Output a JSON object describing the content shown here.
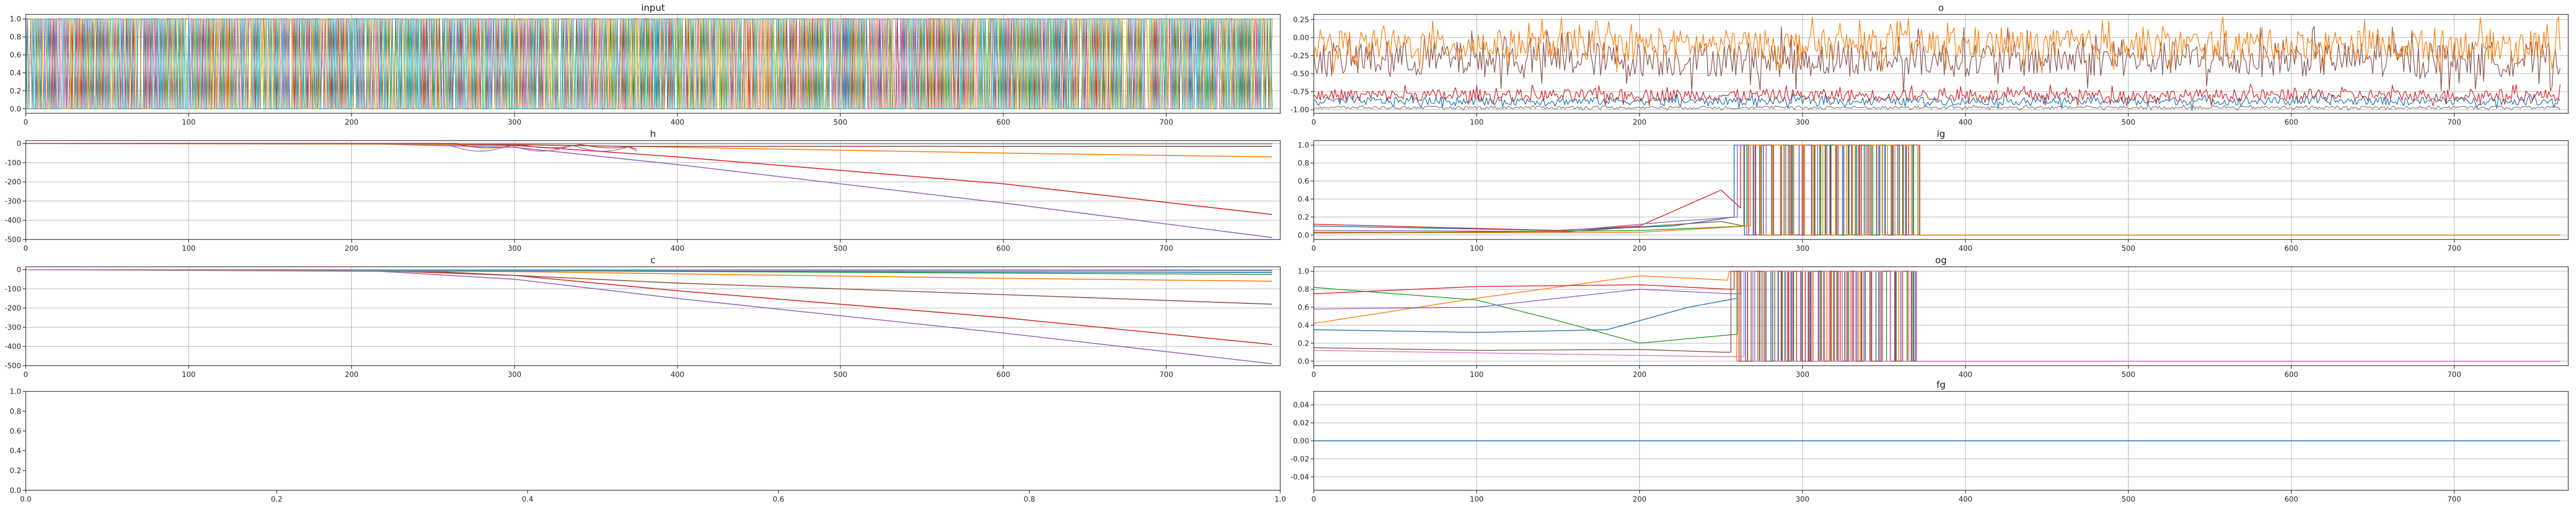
{
  "figure": {
    "background": "#ffffff",
    "grid": true
  },
  "palette": [
    "#1f77b4",
    "#ff7f0e",
    "#2ca02c",
    "#d62728",
    "#9467bd",
    "#8c564b",
    "#e377c2",
    "#7f7f7f",
    "#bcbd22",
    "#17becf"
  ],
  "chart_data": [
    {
      "id": "input",
      "type": "line",
      "title": "input",
      "row": 0,
      "col": 0,
      "xlim": [
        0,
        770
      ],
      "ylim": [
        -0.05,
        1.05
      ],
      "xticks": [
        0,
        100,
        200,
        300,
        400,
        500,
        600,
        700
      ],
      "yticks": [
        0,
        0.2,
        0.4,
        0.6,
        0.8,
        1.0
      ],
      "xtick_labels": [
        "0",
        "100",
        "200",
        "300",
        "400",
        "500",
        "600",
        "700"
      ],
      "ytick_labels": [
        "0.0",
        "0.2",
        "0.4",
        "0.6",
        "0.8",
        "1.0"
      ],
      "pattern": {
        "kind": "binary_switching",
        "n_series": 10,
        "x_end": 765,
        "low": 0,
        "high": 1,
        "flip_prob": 0.35
      }
    },
    {
      "id": "o",
      "type": "line",
      "title": "o",
      "row": 0,
      "col": 1,
      "xlim": [
        0,
        770
      ],
      "ylim": [
        -1.05,
        0.32
      ],
      "xticks": [
        0,
        100,
        200,
        300,
        400,
        500,
        600,
        700
      ],
      "yticks": [
        -1.0,
        -0.75,
        -0.5,
        -0.25,
        0.0,
        0.25
      ],
      "xtick_labels": [
        "0",
        "100",
        "200",
        "300",
        "400",
        "500",
        "600",
        "700"
      ],
      "ytick_labels": [
        "-1.00",
        "-0.75",
        "-0.50",
        "-0.25",
        "0.00",
        "0.25"
      ],
      "series": [
        {
          "color_index": 0,
          "kind": "noise",
          "mean": -0.88,
          "amplitude": 0.08
        },
        {
          "color_index": 3,
          "kind": "noise",
          "mean": -0.8,
          "amplitude": 0.12
        },
        {
          "color_index": 5,
          "kind": "noise",
          "mean": -0.3,
          "amplitude": 0.35
        },
        {
          "color_index": 1,
          "kind": "noise",
          "mean": -0.1,
          "amplitude": 0.3
        },
        {
          "color_index": 7,
          "kind": "noise",
          "mean": -0.97,
          "amplitude": 0.03
        }
      ]
    },
    {
      "id": "h",
      "type": "line",
      "title": "h",
      "row": 1,
      "col": 0,
      "xlim": [
        0,
        770
      ],
      "ylim": [
        -500,
        15
      ],
      "xticks": [
        0,
        100,
        200,
        300,
        400,
        500,
        600,
        700
      ],
      "yticks": [
        -500,
        -400,
        -300,
        -200,
        -100,
        0
      ],
      "xtick_labels": [
        "0",
        "100",
        "200",
        "300",
        "400",
        "500",
        "600",
        "700"
      ],
      "ytick_labels": [
        "-500",
        "-400",
        "-300",
        "-200",
        "-100",
        "0"
      ],
      "series": [
        {
          "color_index": 4,
          "kind": "ramp",
          "points": [
            [
              0,
              0
            ],
            [
              200,
              0
            ],
            [
              300,
              -20
            ],
            [
              400,
              -110
            ],
            [
              600,
              -310
            ],
            [
              765,
              -490
            ]
          ]
        },
        {
          "color_index": 3,
          "kind": "ramp",
          "points": [
            [
              0,
              0
            ],
            [
              200,
              0
            ],
            [
              300,
              -10
            ],
            [
              400,
              -70
            ],
            [
              600,
              -210
            ],
            [
              765,
              -370
            ]
          ]
        },
        {
          "color_index": 1,
          "kind": "ramp",
          "points": [
            [
              0,
              0
            ],
            [
              300,
              -5
            ],
            [
              400,
              -20
            ],
            [
              600,
              -50
            ],
            [
              765,
              -70
            ]
          ]
        },
        {
          "color_index": 5,
          "kind": "ramp",
          "points": [
            [
              0,
              0
            ],
            [
              250,
              0
            ],
            [
              370,
              -15
            ],
            [
              765,
              -15
            ]
          ]
        },
        {
          "color_index": 0,
          "kind": "ramp",
          "points": [
            [
              0,
              0
            ],
            [
              765,
              -2
            ]
          ]
        },
        {
          "color_index": 2,
          "kind": "ramp",
          "points": [
            [
              0,
              0
            ],
            [
              765,
              -1
            ]
          ]
        },
        {
          "color_index": 6,
          "kind": "ramp",
          "points": [
            [
              0,
              0
            ],
            [
              765,
              0
            ]
          ]
        },
        {
          "color_index": 4,
          "kind": "osc",
          "x_start": 260,
          "x_end": 370,
          "base": -10,
          "amplitude": 30,
          "after": -40
        },
        {
          "color_index": 3,
          "kind": "osc",
          "x_start": 265,
          "x_end": 370,
          "base": -5,
          "amplitude": 18,
          "after": -30
        }
      ]
    },
    {
      "id": "ig",
      "type": "line",
      "title": "ig",
      "row": 1,
      "col": 1,
      "xlim": [
        0,
        770
      ],
      "ylim": [
        -0.05,
        1.05
      ],
      "xticks": [
        0,
        100,
        200,
        300,
        400,
        500,
        600,
        700
      ],
      "yticks": [
        0,
        0.2,
        0.4,
        0.6,
        0.8,
        1.0
      ],
      "xtick_labels": [
        "0",
        "100",
        "200",
        "300",
        "400",
        "500",
        "600",
        "700"
      ],
      "ytick_labels": [
        "0.0",
        "0.2",
        "0.4",
        "0.6",
        "0.8",
        "1.0"
      ],
      "series": [
        {
          "color_index": 0,
          "kind": "gate",
          "pre_points": [
            [
              0,
              0.1
            ],
            [
              150,
              0.05
            ],
            [
              220,
              0.1
            ],
            [
              258,
              0.2
            ]
          ],
          "osc_start": 258,
          "osc_end": 372,
          "after": 0
        },
        {
          "color_index": 3,
          "kind": "gate",
          "pre_points": [
            [
              0,
              0.12
            ],
            [
              150,
              0.05
            ],
            [
              200,
              0.1
            ],
            [
              250,
              0.5
            ],
            [
              262,
              0.3
            ]
          ],
          "osc_start": 262,
          "osc_end": 372,
          "after": 0
        },
        {
          "color_index": 4,
          "kind": "gate",
          "pre_points": [
            [
              0,
              0.05
            ],
            [
              150,
              0.04
            ],
            [
              220,
              0.15
            ],
            [
              260,
              0.2
            ]
          ],
          "osc_start": 260,
          "osc_end": 372,
          "after": 0
        },
        {
          "color_index": 5,
          "kind": "gate",
          "pre_points": [
            [
              0,
              0.03
            ],
            [
              150,
              0.03
            ],
            [
              250,
              0.15
            ],
            [
              264,
              0.1
            ]
          ],
          "osc_start": 264,
          "osc_end": 372,
          "after": 0
        },
        {
          "color_index": 2,
          "kind": "gate",
          "pre_points": [
            [
              0,
              0.02
            ],
            [
              200,
              0.05
            ],
            [
              266,
              0.1
            ]
          ],
          "osc_start": 266,
          "osc_end": 372,
          "after": 0
        },
        {
          "color_index": 1,
          "kind": "gate",
          "pre_points": [
            [
              0,
              0.02
            ],
            [
              200,
              0.03
            ],
            [
              268,
              0.1
            ]
          ],
          "osc_start": 268,
          "osc_end": 372,
          "after": 0
        }
      ]
    },
    {
      "id": "c",
      "type": "line",
      "title": "c",
      "row": 2,
      "col": 0,
      "xlim": [
        0,
        770
      ],
      "ylim": [
        -500,
        15
      ],
      "xticks": [
        0,
        100,
        200,
        300,
        400,
        500,
        600,
        700
      ],
      "yticks": [
        -500,
        -400,
        -300,
        -200,
        -100,
        0
      ],
      "xtick_labels": [
        "0",
        "100",
        "200",
        "300",
        "400",
        "500",
        "600",
        "700"
      ],
      "ytick_labels": [
        "-500",
        "-400",
        "-300",
        "-200",
        "-100",
        "0"
      ],
      "series": [
        {
          "color_index": 4,
          "kind": "ramp",
          "points": [
            [
              0,
              0
            ],
            [
              200,
              0
            ],
            [
              300,
              -50
            ],
            [
              400,
              -150
            ],
            [
              600,
              -330
            ],
            [
              765,
              -490
            ]
          ]
        },
        {
          "color_index": 3,
          "kind": "ramp",
          "points": [
            [
              0,
              0
            ],
            [
              200,
              0
            ],
            [
              300,
              -30
            ],
            [
              400,
              -110
            ],
            [
              600,
              -250
            ],
            [
              765,
              -390
            ]
          ]
        },
        {
          "color_index": 5,
          "kind": "ramp",
          "points": [
            [
              0,
              0
            ],
            [
              250,
              -10
            ],
            [
              400,
              -70
            ],
            [
              600,
              -130
            ],
            [
              765,
              -180
            ]
          ]
        },
        {
          "color_index": 1,
          "kind": "ramp",
          "points": [
            [
              0,
              0
            ],
            [
              300,
              -10
            ],
            [
              600,
              -45
            ],
            [
              765,
              -60
            ]
          ]
        },
        {
          "color_index": 2,
          "kind": "ramp",
          "points": [
            [
              0,
              0
            ],
            [
              300,
              -5
            ],
            [
              765,
              -25
            ]
          ]
        },
        {
          "color_index": 0,
          "kind": "ramp",
          "points": [
            [
              0,
              0
            ],
            [
              765,
              -15
            ]
          ]
        },
        {
          "color_index": 9,
          "kind": "ramp",
          "points": [
            [
              0,
              0
            ],
            [
              765,
              -6
            ]
          ]
        },
        {
          "color_index": 7,
          "kind": "ramp",
          "points": [
            [
              0,
              0
            ],
            [
              765,
              -3
            ]
          ]
        },
        {
          "color_index": 6,
          "kind": "ramp",
          "points": [
            [
              0,
              0
            ],
            [
              765,
              -1
            ]
          ]
        }
      ]
    },
    {
      "id": "og",
      "type": "line",
      "title": "og",
      "row": 2,
      "col": 1,
      "xlim": [
        0,
        770
      ],
      "ylim": [
        -0.05,
        1.05
      ],
      "xticks": [
        0,
        100,
        200,
        300,
        400,
        500,
        600,
        700
      ],
      "yticks": [
        0,
        0.2,
        0.4,
        0.6,
        0.8,
        1.0
      ],
      "xtick_labels": [
        "0",
        "100",
        "200",
        "300",
        "400",
        "500",
        "600",
        "700"
      ],
      "ytick_labels": [
        "0.0",
        "0.2",
        "0.4",
        "0.6",
        "0.8",
        "1.0"
      ],
      "series": [
        {
          "color_index": 0,
          "kind": "gate",
          "pre_points": [
            [
              0,
              0.35
            ],
            [
              100,
              0.32
            ],
            [
              180,
              0.35
            ],
            [
              230,
              0.6
            ],
            [
              260,
              0.7
            ]
          ],
          "osc_start": 260,
          "osc_end": 370,
          "after": 0
        },
        {
          "color_index": 1,
          "kind": "gate",
          "pre_points": [
            [
              0,
              0.42
            ],
            [
              100,
              0.7
            ],
            [
              200,
              0.95
            ],
            [
              255,
              0.9
            ]
          ],
          "osc_start": 255,
          "osc_end": 370,
          "after": 0
        },
        {
          "color_index": 2,
          "kind": "gate",
          "pre_points": [
            [
              0,
              0.82
            ],
            [
              100,
              0.68
            ],
            [
              150,
              0.45
            ],
            [
              200,
              0.2
            ],
            [
              260,
              0.3
            ]
          ],
          "osc_start": 260,
          "osc_end": 370,
          "after": 0
        },
        {
          "color_index": 3,
          "kind": "gate",
          "pre_points": [
            [
              0,
              0.75
            ],
            [
              100,
              0.83
            ],
            [
              200,
              0.85
            ],
            [
              255,
              0.8
            ]
          ],
          "osc_start": 258,
          "osc_end": 370,
          "after": 0
        },
        {
          "color_index": 4,
          "kind": "gate",
          "pre_points": [
            [
              0,
              0.58
            ],
            [
              100,
              0.6
            ],
            [
              200,
              0.8
            ],
            [
              255,
              0.75
            ]
          ],
          "osc_start": 262,
          "osc_end": 370,
          "after": 0
        },
        {
          "color_index": 5,
          "kind": "gate",
          "pre_points": [
            [
              0,
              0.15
            ],
            [
              100,
              0.12
            ],
            [
              200,
              0.13
            ],
            [
              250,
              0.1
            ]
          ],
          "osc_start": 256,
          "osc_end": 370,
          "after": 0
        },
        {
          "color_index": 6,
          "kind": "gate",
          "pre_points": [
            [
              0,
              0.12
            ],
            [
              250,
              0.05
            ]
          ],
          "osc_start": 264,
          "osc_end": 370,
          "after": 0
        }
      ]
    },
    {
      "id": "empty",
      "type": "line",
      "title": "",
      "row": 3,
      "col": 0,
      "xlim": [
        0,
        1
      ],
      "ylim": [
        0,
        1
      ],
      "grid": false,
      "xticks": [
        0,
        0.2,
        0.4,
        0.6,
        0.8,
        1.0
      ],
      "yticks": [
        0,
        0.2,
        0.4,
        0.6,
        0.8,
        1.0
      ],
      "xtick_labels": [
        "0.0",
        "0.2",
        "0.4",
        "0.6",
        "0.8",
        "1.0"
      ],
      "ytick_labels": [
        "0.0",
        "0.2",
        "0.4",
        "0.6",
        "0.8",
        "1.0"
      ],
      "series": []
    },
    {
      "id": "fg",
      "type": "line",
      "title": "fg",
      "row": 3,
      "col": 1,
      "xlim": [
        0,
        770
      ],
      "ylim": [
        -0.055,
        0.055
      ],
      "xticks": [
        0,
        100,
        200,
        300,
        400,
        500,
        600,
        700
      ],
      "yticks": [
        -0.04,
        -0.02,
        0.0,
        0.02,
        0.04
      ],
      "xtick_labels": [
        "0",
        "100",
        "200",
        "300",
        "400",
        "500",
        "600",
        "700"
      ],
      "ytick_labels": [
        "-0.04",
        "-0.02",
        "0.00",
        "0.02",
        "0.04"
      ],
      "series": [
        {
          "color_index": 0,
          "kind": "ramp",
          "points": [
            [
              0,
              0
            ],
            [
              765,
              0
            ]
          ]
        }
      ]
    }
  ]
}
